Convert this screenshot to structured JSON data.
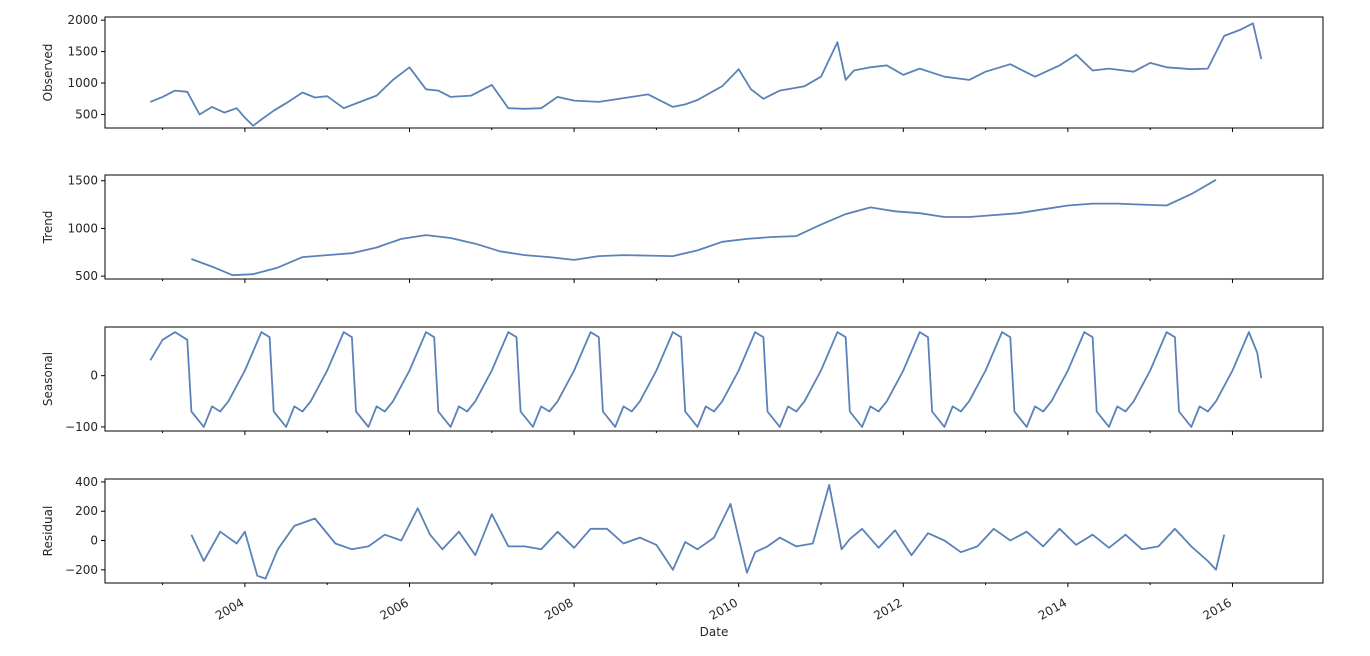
{
  "figure": {
    "xlabel": "Date"
  },
  "chart_data": [
    {
      "type": "line",
      "ylabel": "Observed",
      "xlim": [
        2002.3,
        2017.1
      ],
      "ylim": [
        285,
        2050
      ],
      "yticks": [
        500,
        1000,
        1500,
        2000
      ],
      "ytick_labels": [
        "500",
        "1000",
        "1500",
        "2000"
      ],
      "series": [
        {
          "name": "Observed",
          "color": "#5b82b8",
          "x": [
            2002.85,
            2003.0,
            2003.15,
            2003.3,
            2003.45,
            2003.6,
            2003.75,
            2003.9,
            2004.0,
            2004.1,
            2004.2,
            2004.35,
            2004.5,
            2004.7,
            2004.85,
            2005.0,
            2005.2,
            2005.4,
            2005.6,
            2005.8,
            2006.0,
            2006.2,
            2006.35,
            2006.5,
            2006.75,
            2007.0,
            2007.2,
            2007.4,
            2007.6,
            2007.8,
            2008.0,
            2008.3,
            2008.6,
            2008.9,
            2009.2,
            2009.35,
            2009.5,
            2009.8,
            2010.0,
            2010.15,
            2010.3,
            2010.5,
            2010.8,
            2011.0,
            2011.2,
            2011.3,
            2011.4,
            2011.6,
            2011.8,
            2012.0,
            2012.2,
            2012.5,
            2012.8,
            2013.0,
            2013.3,
            2013.6,
            2013.9,
            2014.1,
            2014.3,
            2014.5,
            2014.8,
            2015.0,
            2015.2,
            2015.5,
            2015.7,
            2015.9,
            2016.1,
            2016.25,
            2016.35
          ],
          "y": [
            700,
            780,
            880,
            860,
            500,
            620,
            530,
            600,
            450,
            320,
            420,
            560,
            680,
            850,
            770,
            790,
            600,
            700,
            800,
            1050,
            1250,
            900,
            880,
            780,
            800,
            970,
            600,
            590,
            600,
            780,
            720,
            700,
            760,
            820,
            620,
            660,
            730,
            950,
            1220,
            900,
            750,
            880,
            950,
            1100,
            1650,
            1050,
            1200,
            1250,
            1280,
            1130,
            1230,
            1100,
            1050,
            1180,
            1300,
            1100,
            1280,
            1450,
            1200,
            1230,
            1180,
            1320,
            1250,
            1220,
            1230,
            1750,
            1850,
            1950,
            1380
          ]
        }
      ]
    },
    {
      "type": "line",
      "ylabel": "Trend",
      "xlim": [
        2002.3,
        2017.1
      ],
      "ylim": [
        470,
        1560
      ],
      "yticks": [
        500,
        1000,
        1500
      ],
      "ytick_labels": [
        "500",
        "1000",
        "1500"
      ],
      "series": [
        {
          "name": "Trend",
          "color": "#5b82b8",
          "x": [
            2003.35,
            2003.6,
            2003.85,
            2004.1,
            2004.4,
            2004.7,
            2005.0,
            2005.3,
            2005.6,
            2005.9,
            2006.2,
            2006.5,
            2006.8,
            2007.1,
            2007.4,
            2007.7,
            2008.0,
            2008.3,
            2008.6,
            2008.9,
            2009.2,
            2009.5,
            2009.8,
            2010.1,
            2010.4,
            2010.7,
            2011.0,
            2011.3,
            2011.6,
            2011.9,
            2012.2,
            2012.5,
            2012.8,
            2013.1,
            2013.4,
            2013.7,
            2014.0,
            2014.3,
            2014.6,
            2014.9,
            2015.2,
            2015.5,
            2015.8
          ],
          "y": [
            680,
            600,
            510,
            520,
            590,
            700,
            720,
            740,
            800,
            890,
            930,
            900,
            840,
            760,
            720,
            700,
            670,
            710,
            720,
            715,
            710,
            770,
            860,
            890,
            910,
            920,
            1040,
            1150,
            1220,
            1180,
            1160,
            1120,
            1120,
            1140,
            1160,
            1200,
            1240,
            1260,
            1260,
            1250,
            1240,
            1360,
            1510
          ]
        }
      ]
    },
    {
      "type": "line",
      "ylabel": "Seasonal",
      "xlim": [
        2002.3,
        2017.1
      ],
      "ylim": [
        -108,
        95
      ],
      "yticks": [
        -100,
        0
      ],
      "ytick_labels": [
        "−100",
        "0"
      ],
      "series": [
        {
          "name": "Seasonal",
          "color": "#5b82b8",
          "x": [
            2002.85,
            2003.0,
            2003.15,
            2003.3,
            2003.35,
            2003.5,
            2003.6,
            2003.7,
            2003.8,
            2004.0,
            2004.2,
            2004.3,
            2004.35,
            2004.5,
            2004.6,
            2004.7,
            2004.8,
            2005.0,
            2005.2,
            2005.3,
            2005.35,
            2005.5,
            2005.6,
            2005.7,
            2005.8,
            2006.0,
            2006.2,
            2006.3,
            2006.35,
            2006.5,
            2006.6,
            2006.7,
            2006.8,
            2007.0,
            2007.2,
            2007.3,
            2007.35,
            2007.5,
            2007.6,
            2007.7,
            2007.8,
            2008.0,
            2008.2,
            2008.3,
            2008.35,
            2008.5,
            2008.6,
            2008.7,
            2008.8,
            2009.0,
            2009.2,
            2009.3,
            2009.35,
            2009.5,
            2009.6,
            2009.7,
            2009.8,
            2010.0,
            2010.2,
            2010.3,
            2010.35,
            2010.5,
            2010.6,
            2010.7,
            2010.8,
            2011.0,
            2011.2,
            2011.3,
            2011.35,
            2011.5,
            2011.6,
            2011.7,
            2011.8,
            2012.0,
            2012.2,
            2012.3,
            2012.35,
            2012.5,
            2012.6,
            2012.7,
            2012.8,
            2013.0,
            2013.2,
            2013.3,
            2013.35,
            2013.5,
            2013.6,
            2013.7,
            2013.8,
            2014.0,
            2014.2,
            2014.3,
            2014.35,
            2014.5,
            2014.6,
            2014.7,
            2014.8,
            2015.0,
            2015.2,
            2015.3,
            2015.35,
            2015.5,
            2015.6,
            2015.7,
            2015.8,
            2016.0,
            2016.2,
            2016.3,
            2016.35
          ],
          "y": [
            30,
            70,
            85,
            70,
            -70,
            -100,
            -60,
            -70,
            -50,
            10,
            85,
            75,
            -70,
            -100,
            -60,
            -70,
            -50,
            10,
            85,
            75,
            -70,
            -100,
            -60,
            -70,
            -50,
            10,
            85,
            75,
            -70,
            -100,
            -60,
            -70,
            -50,
            10,
            85,
            75,
            -70,
            -100,
            -60,
            -70,
            -50,
            10,
            85,
            75,
            -70,
            -100,
            -60,
            -70,
            -50,
            10,
            85,
            75,
            -70,
            -100,
            -60,
            -70,
            -50,
            10,
            85,
            75,
            -70,
            -100,
            -60,
            -70,
            -50,
            10,
            85,
            75,
            -70,
            -100,
            -60,
            -70,
            -50,
            10,
            85,
            75,
            -70,
            -100,
            -60,
            -70,
            -50,
            10,
            85,
            75,
            -70,
            -100,
            -60,
            -70,
            -50,
            10,
            85,
            75,
            -70,
            -100,
            -60,
            -70,
            -50,
            10,
            85,
            75,
            -70,
            -100,
            -60,
            -70,
            -50,
            10,
            85,
            45,
            -5
          ]
        }
      ]
    },
    {
      "type": "line",
      "ylabel": "Residual",
      "xlim": [
        2002.3,
        2017.1
      ],
      "ylim": [
        -290,
        420
      ],
      "yticks": [
        -200,
        0,
        200,
        400
      ],
      "ytick_labels": [
        "−200",
        "0",
        "200",
        "400"
      ],
      "series": [
        {
          "name": "Residual",
          "color": "#5b82b8",
          "x": [
            2003.35,
            2003.5,
            2003.7,
            2003.9,
            2004.0,
            2004.15,
            2004.25,
            2004.4,
            2004.6,
            2004.85,
            2005.1,
            2005.3,
            2005.5,
            2005.7,
            2005.9,
            2006.1,
            2006.25,
            2006.4,
            2006.6,
            2006.8,
            2007.0,
            2007.2,
            2007.4,
            2007.6,
            2007.8,
            2008.0,
            2008.2,
            2008.4,
            2008.6,
            2008.8,
            2009.0,
            2009.2,
            2009.35,
            2009.5,
            2009.7,
            2009.9,
            2010.1,
            2010.2,
            2010.35,
            2010.5,
            2010.7,
            2010.9,
            2011.1,
            2011.25,
            2011.35,
            2011.5,
            2011.7,
            2011.9,
            2012.1,
            2012.3,
            2012.5,
            2012.7,
            2012.9,
            2013.1,
            2013.3,
            2013.5,
            2013.7,
            2013.9,
            2014.1,
            2014.3,
            2014.5,
            2014.7,
            2014.9,
            2015.1,
            2015.3,
            2015.5,
            2015.7,
            2015.8,
            2015.9
          ],
          "y": [
            40,
            -140,
            60,
            -20,
            60,
            -240,
            -260,
            -60,
            100,
            150,
            -20,
            -60,
            -40,
            40,
            0,
            220,
            40,
            -60,
            60,
            -100,
            180,
            -40,
            -40,
            -60,
            60,
            -50,
            80,
            80,
            -20,
            20,
            -30,
            -200,
            -10,
            -60,
            20,
            250,
            -220,
            -80,
            -40,
            20,
            -40,
            -20,
            380,
            -60,
            10,
            80,
            -50,
            70,
            -100,
            50,
            0,
            -80,
            -40,
            80,
            0,
            60,
            -40,
            80,
            -30,
            40,
            -50,
            40,
            -60,
            -40,
            80,
            -40,
            -140,
            -200,
            40
          ]
        }
      ]
    }
  ],
  "x_axis": {
    "ticks": [
      2004,
      2006,
      2008,
      2010,
      2012,
      2014,
      2016
    ],
    "tick_labels": [
      "2004",
      "2006",
      "2008",
      "2010",
      "2012",
      "2014",
      "2016"
    ]
  }
}
